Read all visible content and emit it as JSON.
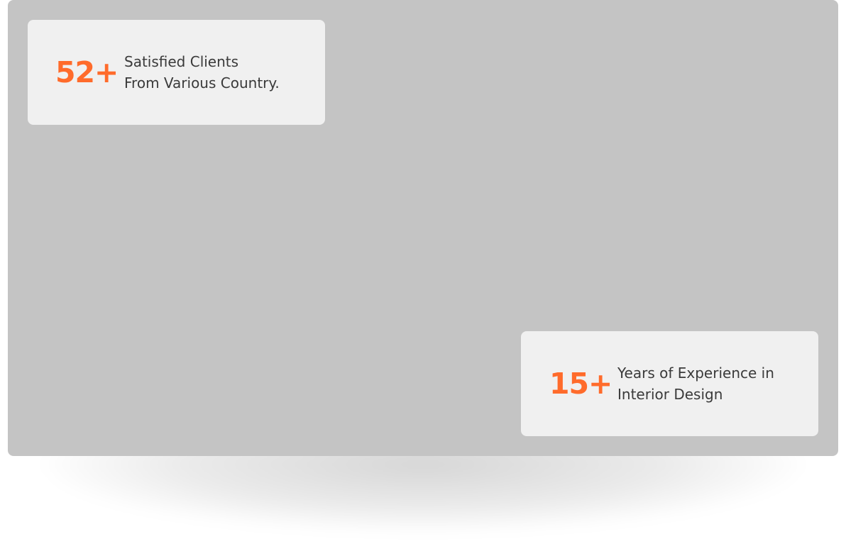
{
  "colors": {
    "accent": "#ff6b2b",
    "panel": "#c4c4c4",
    "card": "#f0f0f0",
    "text": "#3a3a3a"
  },
  "stats": [
    {
      "value": "52+",
      "line1": "Satisfied Clients",
      "line2": "From Various Country."
    },
    {
      "value": "15+",
      "line1": "Years of Experience in",
      "line2": "Interior Design"
    }
  ]
}
